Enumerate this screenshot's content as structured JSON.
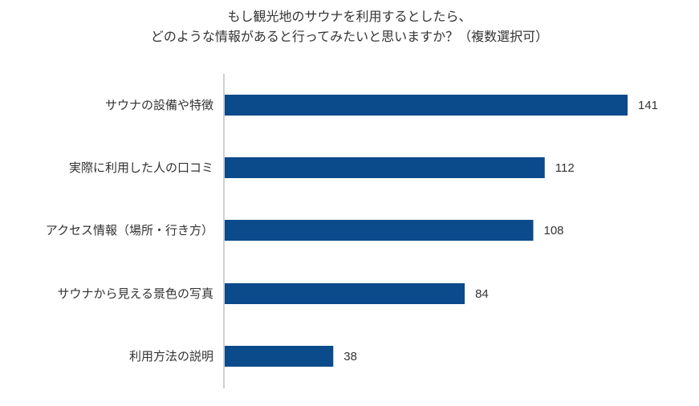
{
  "chart_data": {
    "type": "bar",
    "orientation": "horizontal",
    "title": "もし観光地のサウナを利用するとしたら、",
    "subtitle": "どのような情報があると行ってみたいと思いますか？（複数選択可）",
    "categories": [
      "サウナの設備や特徴",
      "実際に利用した人の口コミ",
      "アクセス情報（場所・行き方）",
      "サウナから見える景色の写真",
      "利用方法の説明"
    ],
    "values": [
      141,
      112,
      108,
      84,
      38
    ],
    "xlim": [
      0,
      141
    ],
    "grid": false,
    "legend": "none",
    "bar_color": "#0B4A8B",
    "axis_color": "#BFBFBF"
  }
}
